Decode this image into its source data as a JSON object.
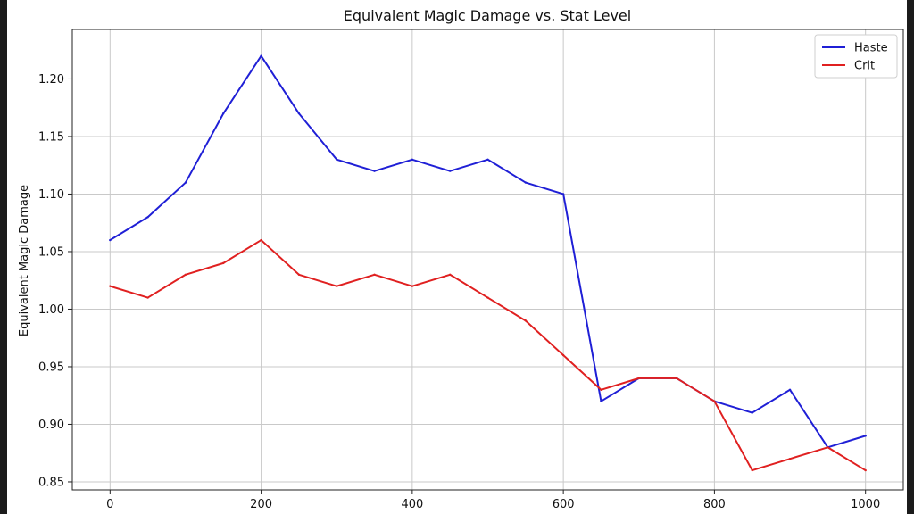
{
  "chart_data": {
    "type": "line",
    "title": "Equivalent Magic Damage vs. Stat Level",
    "xlabel": "",
    "ylabel": "Equivalent Magic Damage",
    "x": [
      0,
      50,
      100,
      150,
      200,
      250,
      300,
      350,
      400,
      450,
      500,
      550,
      600,
      650,
      700,
      750,
      800,
      850,
      900,
      950,
      1000
    ],
    "xticks": [
      0,
      200,
      400,
      600,
      800,
      1000
    ],
    "xtick_labels": [
      "0",
      "200",
      "400",
      "600",
      "800",
      "1000"
    ],
    "yticks": [
      0.85,
      0.9,
      0.95,
      1.0,
      1.05,
      1.1,
      1.15,
      1.2
    ],
    "ytick_labels": [
      "0.85",
      "0.90",
      "0.95",
      "1.00",
      "1.05",
      "1.10",
      "1.15",
      "1.20"
    ],
    "xlim": [
      -50,
      1050
    ],
    "ylim": [
      0.843,
      1.243
    ],
    "grid": true,
    "legend_position": "top-right",
    "series": [
      {
        "name": "Haste",
        "color": "#1f1fd6",
        "values": [
          1.06,
          1.08,
          1.11,
          1.17,
          1.22,
          1.17,
          1.13,
          1.12,
          1.13,
          1.12,
          1.13,
          1.11,
          1.1,
          0.92,
          0.94,
          0.94,
          0.92,
          0.91,
          0.93,
          0.88,
          0.89
        ]
      },
      {
        "name": "Crit",
        "color": "#e02020",
        "values": [
          1.02,
          1.01,
          1.03,
          1.04,
          1.06,
          1.03,
          1.02,
          1.03,
          1.02,
          1.03,
          1.01,
          0.99,
          0.96,
          0.93,
          0.94,
          0.94,
          0.92,
          0.86,
          0.87,
          0.88,
          0.86
        ]
      }
    ]
  }
}
